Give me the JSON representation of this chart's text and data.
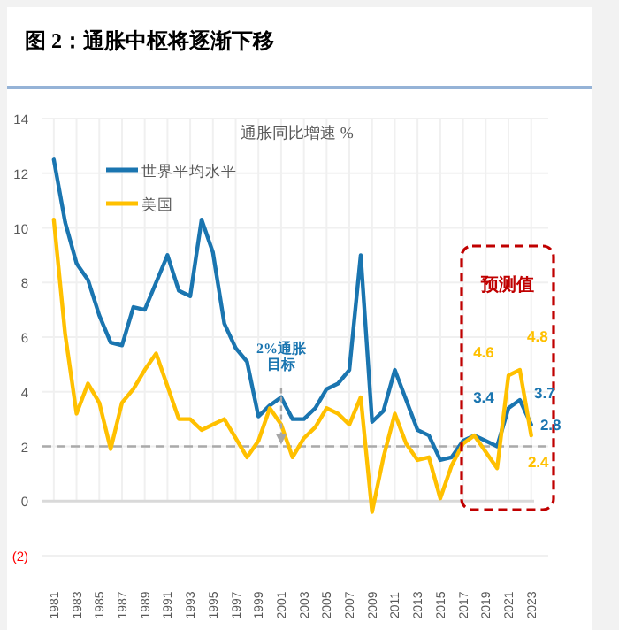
{
  "chart_data": {
    "type": "line",
    "title": "图 2：通胀中枢将逐渐下移",
    "subtitle": "通胀同比增速 %",
    "x": [
      1981,
      1982,
      1983,
      1984,
      1985,
      1986,
      1987,
      1988,
      1989,
      1990,
      1991,
      1992,
      1993,
      1994,
      1995,
      1996,
      1997,
      1998,
      1999,
      2000,
      2001,
      2002,
      2003,
      2004,
      2005,
      2006,
      2007,
      2008,
      2009,
      2010,
      2011,
      2012,
      2013,
      2014,
      2015,
      2016,
      2017,
      2018,
      2019,
      2020,
      2021,
      2022,
      2023
    ],
    "series": [
      {
        "name": "世界平均水平",
        "color": "#1a75b0",
        "values": [
          12.5,
          10.2,
          8.7,
          8.1,
          6.8,
          5.8,
          5.7,
          7.1,
          7.0,
          8.0,
          9.0,
          7.7,
          7.5,
          10.3,
          9.1,
          6.5,
          5.6,
          5.1,
          3.1,
          3.5,
          3.8,
          3.0,
          3.0,
          3.4,
          4.1,
          4.3,
          4.8,
          9.0,
          2.9,
          3.3,
          4.8,
          3.7,
          2.6,
          2.4,
          1.5,
          1.6,
          2.2,
          2.4,
          2.2,
          2.0,
          3.4,
          3.7,
          2.8
        ],
        "value_labels": [
          null,
          null,
          null,
          null,
          null,
          null,
          null,
          null,
          null,
          null,
          null,
          null,
          null,
          null,
          null,
          null,
          null,
          null,
          null,
          null,
          null,
          null,
          null,
          null,
          null,
          null,
          null,
          null,
          null,
          null,
          null,
          null,
          null,
          null,
          null,
          null,
          null,
          null,
          null,
          null,
          "3.4",
          "3.7",
          "2.8"
        ]
      },
      {
        "name": "美国",
        "color": "#ffc000",
        "values": [
          10.3,
          6.1,
          3.2,
          4.3,
          3.6,
          1.9,
          3.6,
          4.1,
          4.8,
          5.4,
          4.2,
          3.0,
          3.0,
          2.6,
          2.8,
          3.0,
          2.3,
          1.6,
          2.2,
          3.4,
          2.8,
          1.6,
          2.3,
          2.7,
          3.4,
          3.2,
          2.8,
          3.8,
          -0.4,
          1.6,
          3.2,
          2.1,
          1.5,
          1.6,
          0.1,
          1.3,
          2.1,
          2.4,
          1.8,
          1.2,
          4.6,
          4.8,
          2.4
        ],
        "value_labels": [
          null,
          null,
          null,
          null,
          null,
          null,
          null,
          null,
          null,
          null,
          null,
          null,
          null,
          null,
          null,
          null,
          null,
          null,
          null,
          null,
          null,
          null,
          null,
          null,
          null,
          null,
          null,
          null,
          null,
          null,
          null,
          null,
          null,
          null,
          null,
          null,
          null,
          null,
          null,
          null,
          "4.6",
          "4.8",
          "2.4"
        ]
      }
    ],
    "xlim": [
      1980,
      2024.5
    ],
    "xticks": [
      1981,
      1983,
      1985,
      1987,
      1989,
      1991,
      1993,
      1995,
      1997,
      1999,
      2001,
      2003,
      2005,
      2007,
      2009,
      2011,
      2013,
      2015,
      2017,
      2019,
      2021,
      2023
    ],
    "ylim": [
      -2,
      14
    ],
    "yticks": [
      {
        "value": -2,
        "label": "(2)"
      },
      0,
      2,
      4,
      6,
      8,
      10,
      12,
      14
    ],
    "ref_lines": [
      {
        "axis": "y",
        "value": 2,
        "color": "#aaaaaa",
        "line_style": "dashed"
      }
    ],
    "annotations": [
      {
        "text": "2%通胀目标",
        "x": 2001,
        "y": 2
      },
      "预测值"
    ],
    "legend": "top left",
    "grid": true,
    "line_style": "solid",
    "marker": "none"
  }
}
